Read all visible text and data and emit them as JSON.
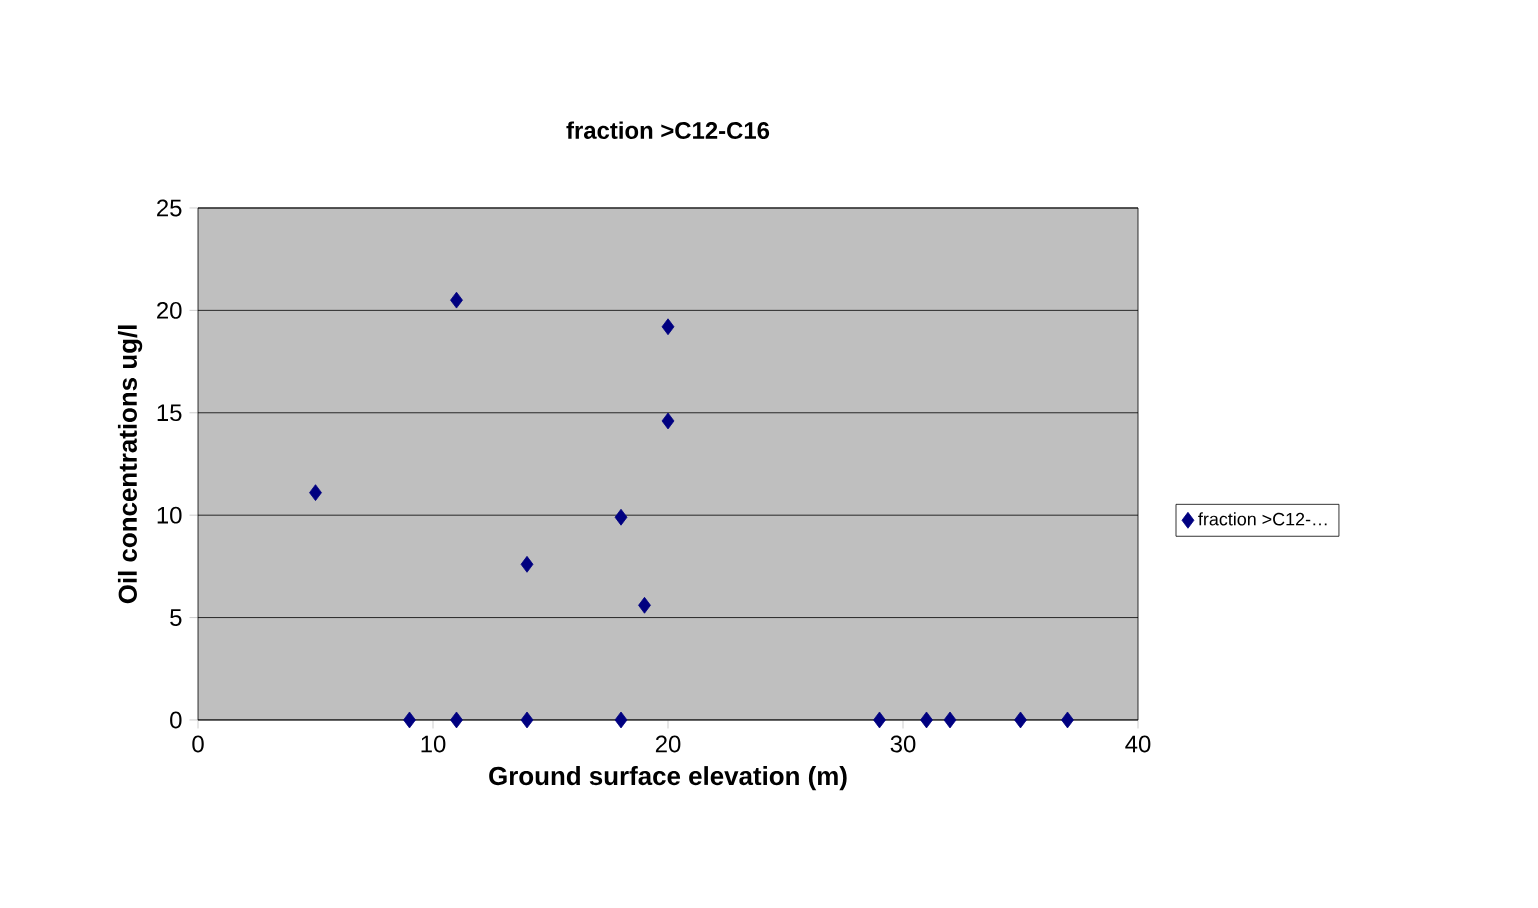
{
  "chart_data": {
    "type": "scatter",
    "title": "fraction >C12-C16",
    "xlabel": "Ground surface elevation (m)",
    "ylabel": "Oil concentrations ug/l",
    "x": [
      5,
      9,
      11,
      11,
      14,
      14,
      18,
      18,
      19,
      20,
      20,
      29,
      31,
      32,
      35,
      37
    ],
    "series": [
      {
        "name": "fraction >C12-…",
        "color": "#000080",
        "values": [
          11.1,
          0,
          20.5,
          0,
          7.6,
          0,
          9.9,
          0,
          5.6,
          19.2,
          14.6,
          0,
          0,
          0,
          0,
          0
        ]
      }
    ],
    "xlim": [
      0,
      40
    ],
    "xticks": [
      0,
      10,
      20,
      30,
      40
    ],
    "ylim": [
      0,
      25
    ],
    "yticks": [
      0,
      5,
      10,
      15,
      20,
      25
    ],
    "grid": "y",
    "legend": "right",
    "marker": "diamond"
  }
}
